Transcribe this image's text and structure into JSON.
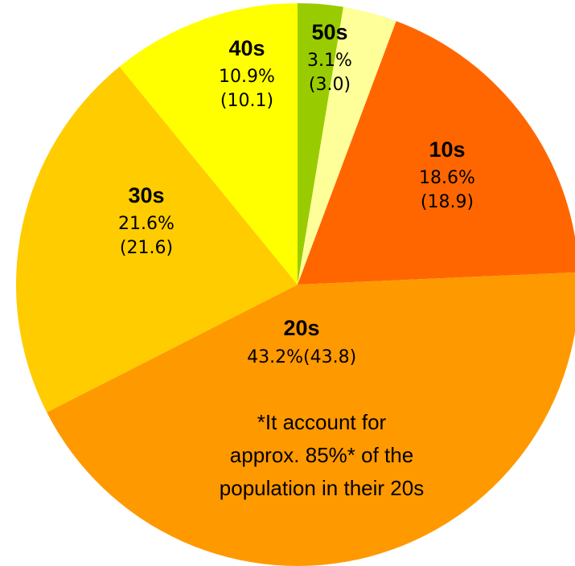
{
  "chart_data": {
    "type": "pie",
    "categories": [
      null,
      "50s",
      "10s",
      "20s",
      "30s",
      "40s"
    ],
    "values": [
      2.6,
      3.1,
      18.6,
      43.2,
      21.6,
      10.9
    ],
    "value_labels": [
      null,
      "3.1%",
      "18.6%",
      "43.2%",
      "21.6%",
      "10.9%"
    ],
    "comparison_values": [
      null,
      3.0,
      18.9,
      43.8,
      21.6,
      10.1
    ],
    "comparison_value_labels": [
      null,
      "(3.0)",
      "(18.9)",
      "(43.8)",
      "(21.6)",
      "(10.1)"
    ],
    "colors": [
      "#99cc00",
      "#ffff99",
      "#ff6600",
      "#ff9900",
      "#ffcc00",
      "#ffff00"
    ],
    "annotation": [
      "*It account for",
      "approx. 85%* of the",
      "population in their 20s"
    ]
  }
}
